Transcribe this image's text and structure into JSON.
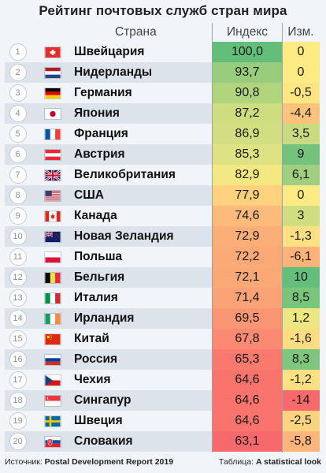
{
  "title": "Рейтинг почтовых служб стран мира",
  "headers": {
    "country": "Страна",
    "index": "Индекс",
    "change": "Изм."
  },
  "chart_data": {
    "type": "table",
    "columns": [
      "Страна",
      "Индекс",
      "Изм."
    ],
    "rows": [
      {
        "rank": "1",
        "flag": "switzerland",
        "country": "Швейцария",
        "index": "100,0",
        "change": "0"
      },
      {
        "rank": "2",
        "flag": "netherlands",
        "country": "Нидерланды",
        "index": "93,7",
        "change": "0"
      },
      {
        "rank": "3",
        "flag": "germany",
        "country": "Германия",
        "index": "90,8",
        "change": "-0,5"
      },
      {
        "rank": "4",
        "flag": "japan",
        "country": "Япония",
        "index": "87,2",
        "change": "-4,4"
      },
      {
        "rank": "5",
        "flag": "france",
        "country": "Франция",
        "index": "86,9",
        "change": "3,5"
      },
      {
        "rank": "6",
        "flag": "austria",
        "country": "Австрия",
        "index": "85,3",
        "change": "9"
      },
      {
        "rank": "7",
        "flag": "united-kingdom",
        "country": "Великобритания",
        "index": "82,9",
        "change": "6,1"
      },
      {
        "rank": "8",
        "flag": "usa",
        "country": "США",
        "index": "77,9",
        "change": "0"
      },
      {
        "rank": "9",
        "flag": "canada",
        "country": "Канада",
        "index": "74,6",
        "change": "3"
      },
      {
        "rank": "10",
        "flag": "new-zealand",
        "country": "Новая Зеландия",
        "index": "72,9",
        "change": "-1,3"
      },
      {
        "rank": "11",
        "flag": "poland",
        "country": "Польша",
        "index": "72,2",
        "change": "-6,1"
      },
      {
        "rank": "12",
        "flag": "belgium",
        "country": "Бельгия",
        "index": "72,1",
        "change": "10"
      },
      {
        "rank": "13",
        "flag": "italy",
        "country": "Италия",
        "index": "71,4",
        "change": "8,5"
      },
      {
        "rank": "14",
        "flag": "ireland",
        "country": "Ирландия",
        "index": "69,5",
        "change": "1,2"
      },
      {
        "rank": "15",
        "flag": "china",
        "country": "Китай",
        "index": "67,8",
        "change": "-1,6"
      },
      {
        "rank": "16",
        "flag": "russia",
        "country": "Россия",
        "index": "65,3",
        "change": "8,3"
      },
      {
        "rank": "17",
        "flag": "czech",
        "country": "Чехия",
        "index": "64,6",
        "change": "-1,2"
      },
      {
        "rank": "18",
        "flag": "singapore",
        "country": "Сингапур",
        "index": "64,6",
        "change": "-14"
      },
      {
        "rank": "19",
        "flag": "sweden",
        "country": "Швеция",
        "index": "64,6",
        "change": "-2,5"
      },
      {
        "rank": "20",
        "flag": "slovakia",
        "country": "Словакия",
        "index": "63,1",
        "change": "-5,8"
      }
    ]
  },
  "footer": {
    "source_label": "Источник:",
    "source_value": "Postal Development Report 2019",
    "table_label": "Таблица:",
    "table_value": "A statistical look"
  }
}
